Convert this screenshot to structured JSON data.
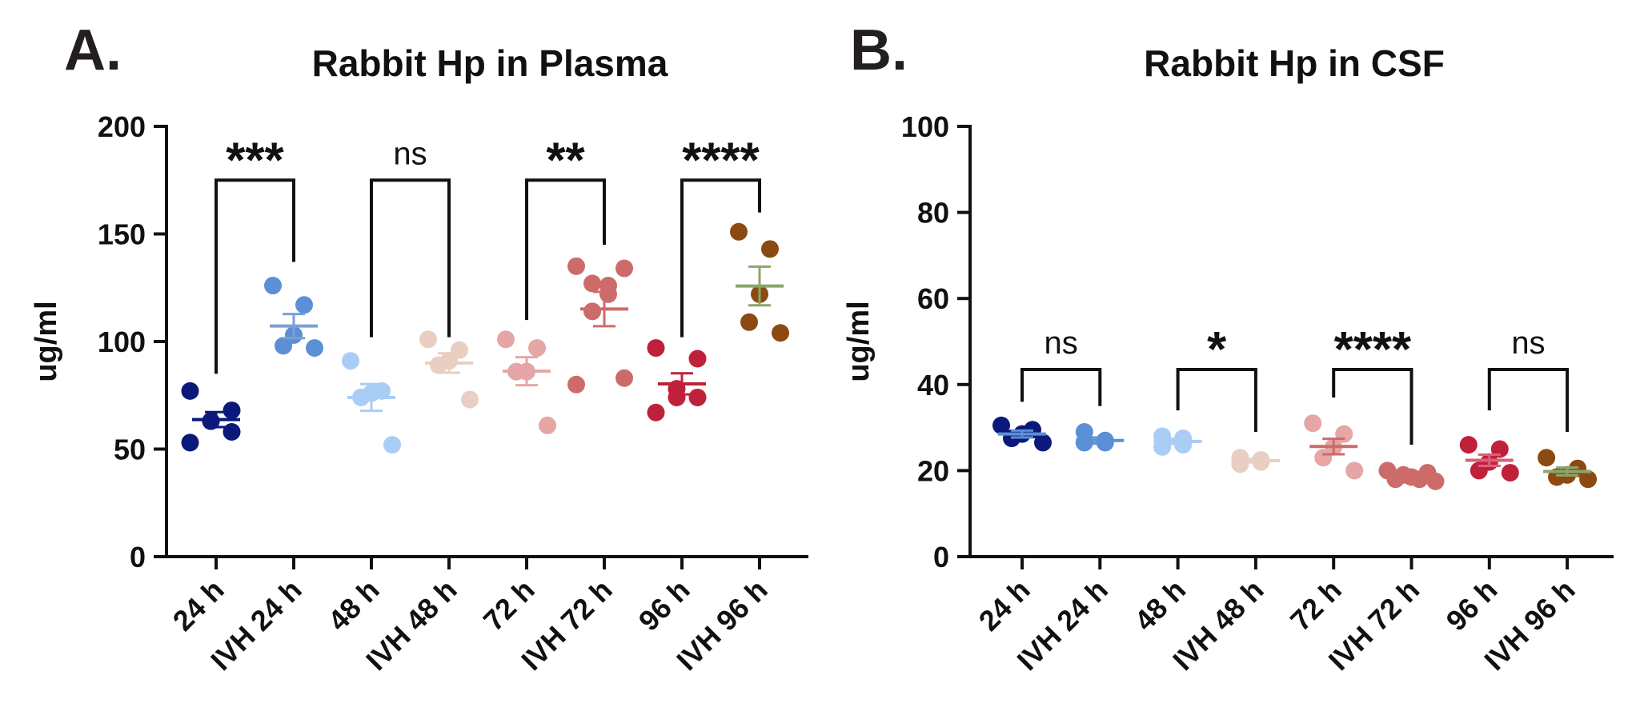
{
  "panels": [
    {
      "letter": "A."
    },
    {
      "letter": "B."
    }
  ],
  "chart_data": [
    {
      "type": "scatter",
      "title": "Rabbit Hp in Plasma",
      "ylabel": "ug/ml",
      "xlabel": "",
      "ylim": [
        0,
        200
      ],
      "yticks": [
        0,
        50,
        100,
        150,
        200
      ],
      "categories": [
        "24 h",
        "IVH 24 h",
        "48 h",
        "IVH 48 h",
        "72 h",
        "IVH 72 h",
        "96 h",
        "IVH 96 h"
      ],
      "colors": [
        "#0b1a7a",
        "#5b8fd6",
        "#a9cdf5",
        "#e8cfc2",
        "#e6a6a6",
        "#cd6b6b",
        "#c0213a",
        "#8b4a12"
      ],
      "mean_colors": [
        "#0b1a7a",
        "#7aa0d8",
        "#a9cdf5",
        "#e8cfc2",
        "#e6a6a6",
        "#cd6b6b",
        "#c0213a",
        "#8ca56a"
      ],
      "points": [
        [
          77,
          68,
          63,
          63,
          58,
          53
        ],
        [
          126,
          117,
          103,
          98,
          97
        ],
        [
          91,
          77,
          76,
          74,
          52
        ],
        [
          101,
          96,
          91,
          89,
          73
        ],
        [
          101,
          97,
          86,
          86,
          61
        ],
        [
          135,
          134,
          127,
          126,
          122,
          114,
          83,
          80
        ],
        [
          97,
          92,
          78,
          74,
          74,
          67
        ],
        [
          151,
          143,
          122,
          109,
          104
        ]
      ],
      "mean": [
        63.7,
        107.2,
        74.0,
        90.0,
        86.2,
        115.1,
        80.3,
        125.8
      ],
      "sem": [
        3.5,
        5.6,
        6.2,
        4.5,
        6.5,
        8.0,
        4.9,
        9.0
      ],
      "comparisons": [
        {
          "pair": [
            0,
            1
          ],
          "label": "***",
          "y": 175,
          "left_end": 85,
          "right_end": 137
        },
        {
          "pair": [
            2,
            3
          ],
          "label": "ns",
          "y": 175,
          "left_end": 102,
          "right_end": 102
        },
        {
          "pair": [
            4,
            5
          ],
          "label": "**",
          "y": 175,
          "left_end": 110,
          "right_end": 145
        },
        {
          "pair": [
            6,
            7
          ],
          "label": "****",
          "y": 175,
          "left_end": 102,
          "right_end": 160
        }
      ]
    },
    {
      "type": "scatter",
      "title": "Rabbit Hp in CSF",
      "ylabel": "ug/ml",
      "xlabel": "",
      "ylim": [
        0,
        100
      ],
      "yticks": [
        0,
        20,
        40,
        60,
        80,
        100
      ],
      "categories": [
        "24 h",
        "IVH 24 h",
        "48 h",
        "IVH 48 h",
        "72 h",
        "IVH 72 h",
        "96 h",
        "IVH 96 h"
      ],
      "colors": [
        "#0b1a7a",
        "#5b8fd6",
        "#a9cdf5",
        "#e8cfc2",
        "#e6a6a6",
        "#cd6b6b",
        "#c0213a",
        "#8b4a12"
      ],
      "mean_colors": [
        "#5b8fd6",
        "#5b8fd6",
        "#a9cdf5",
        "#e8cfc2",
        "#cd6b6b",
        "#cd6b6b",
        "#d9607a",
        "#8ca56a"
      ],
      "points": [
        [
          30.5,
          29.5,
          28.5,
          27.5,
          26.5
        ],
        [
          29,
          27,
          26.5,
          26.5
        ],
        [
          28,
          27.5,
          26,
          25.5
        ],
        [
          23,
          22.5,
          22,
          21.5
        ],
        [
          31,
          28.5,
          25.5,
          23,
          20
        ],
        [
          20,
          19.5,
          19,
          18.5,
          18,
          18,
          17.5
        ],
        [
          26,
          25,
          22,
          20,
          19.5
        ],
        [
          23,
          20.5,
          19,
          18.5,
          18
        ]
      ],
      "mean": [
        28.5,
        27.0,
        26.8,
        22.3,
        25.6,
        18.8,
        22.4,
        19.8
      ],
      "sem": [
        0.8,
        0.7,
        0.6,
        0.4,
        1.8,
        0.4,
        1.3,
        0.9
      ],
      "comparisons": [
        {
          "pair": [
            0,
            1
          ],
          "label": "ns",
          "y": 43.5,
          "left_end": 36,
          "right_end": 35
        },
        {
          "pair": [
            2,
            3
          ],
          "label": "*",
          "y": 43.5,
          "left_end": 34,
          "right_end": 29
        },
        {
          "pair": [
            4,
            5
          ],
          "label": "****",
          "y": 43.5,
          "left_end": 37,
          "right_end": 26
        },
        {
          "pair": [
            6,
            7
          ],
          "label": "ns",
          "y": 43.5,
          "left_end": 34,
          "right_end": 29
        }
      ]
    }
  ]
}
